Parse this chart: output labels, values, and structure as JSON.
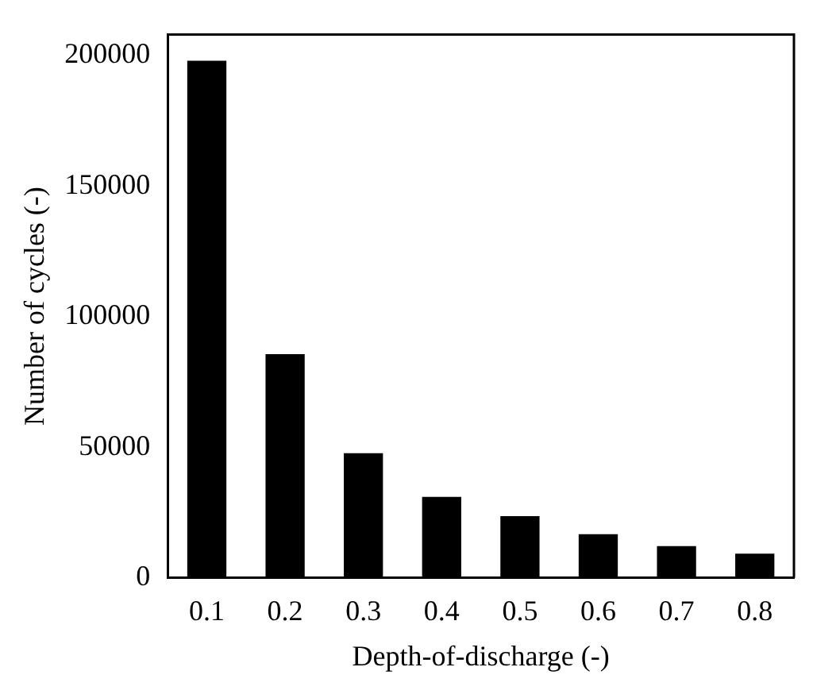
{
  "chart_data": {
    "type": "bar",
    "xlabel": "Depth-of-discharge (-)",
    "ylabel": "Number of cycles (-)",
    "categories": [
      "0.1",
      "0.2",
      "0.3",
      "0.4",
      "0.5",
      "0.6",
      "0.7",
      "0.8"
    ],
    "values": [
      198000,
      85600,
      47700,
      31000,
      23600,
      16700,
      12100,
      9200
    ],
    "color": "#000000",
    "ylim": [
      0,
      208000
    ],
    "yticks": [
      0,
      50000,
      100000,
      150000,
      200000
    ],
    "grid": false,
    "legend": false
  }
}
